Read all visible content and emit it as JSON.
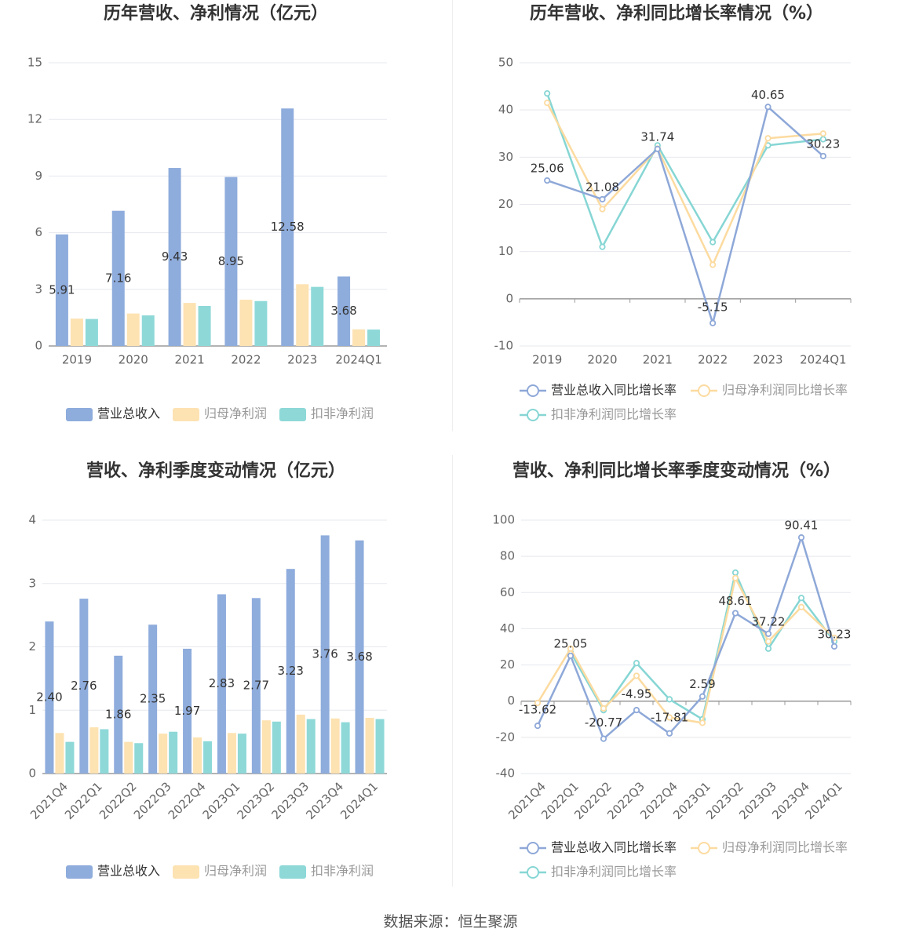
{
  "colors": {
    "revenue": "#8eacdc",
    "parent_profit": "#fde2b2",
    "deducted_profit": "#8ed8d8",
    "revenue_line": "#8ea8d8",
    "parent_line": "#fcdba0",
    "deducted_line": "#86d6d4"
  },
  "source": "数据来源：恒生聚源",
  "chart_data": [
    {
      "id": "annual-bars",
      "type": "bar",
      "title": "历年营收、净利情况（亿元）",
      "categories": [
        "2019",
        "2020",
        "2021",
        "2022",
        "2023",
        "2024Q1"
      ],
      "series": [
        {
          "name": "营业总收入",
          "values": [
            5.91,
            7.16,
            9.43,
            8.95,
            12.58,
            3.68
          ],
          "labels": [
            "5.91",
            "7.16",
            "9.43",
            "8.95",
            "12.58",
            "3.68"
          ]
        },
        {
          "name": "归母净利润",
          "values": [
            1.45,
            1.72,
            2.28,
            2.45,
            3.27,
            0.88
          ]
        },
        {
          "name": "扣非净利润",
          "values": [
            1.43,
            1.62,
            2.12,
            2.38,
            3.13,
            0.87
          ]
        }
      ],
      "yticks": [
        "0",
        "3",
        "6",
        "9",
        "12",
        "15"
      ],
      "ylim": [
        0,
        15
      ],
      "grid": true,
      "legend": "bottom"
    },
    {
      "id": "annual-growth",
      "type": "line",
      "title": "历年营收、净利同比增长率情况（%）",
      "categories": [
        "2019",
        "2020",
        "2021",
        "2022",
        "2023",
        "2024Q1"
      ],
      "series": [
        {
          "name": "营业总收入同比增长率",
          "values": [
            25.06,
            21.08,
            31.74,
            -5.15,
            40.65,
            30.23
          ],
          "labels": [
            "25.06",
            "21.08",
            "31.74",
            "-5.15",
            "40.65",
            "30.23"
          ]
        },
        {
          "name": "归母净利润同比增长率",
          "values": [
            41.5,
            19.0,
            31.8,
            7.2,
            34.0,
            35.0
          ]
        },
        {
          "name": "扣非净利润同比增长率",
          "values": [
            43.5,
            11.0,
            32.5,
            12.0,
            32.5,
            33.8
          ]
        }
      ],
      "yticks": [
        "-10",
        "0",
        "10",
        "20",
        "30",
        "40",
        "50"
      ],
      "ylim": [
        -10,
        50
      ],
      "grid": true,
      "legend": "bottom"
    },
    {
      "id": "quarterly-bars",
      "type": "bar",
      "title": "营收、净利季度变动情况（亿元）",
      "categories": [
        "2021Q4",
        "2022Q1",
        "2022Q2",
        "2022Q3",
        "2022Q4",
        "2023Q1",
        "2023Q2",
        "2023Q3",
        "2023Q4",
        "2024Q1"
      ],
      "series": [
        {
          "name": "营业总收入",
          "values": [
            2.4,
            2.76,
            1.86,
            2.35,
            1.97,
            2.83,
            2.77,
            3.23,
            3.76,
            3.68
          ],
          "labels": [
            "2.40",
            "2.76",
            "1.86",
            "2.35",
            "1.97",
            "2.83",
            "2.77",
            "3.23",
            "3.76",
            "3.68"
          ]
        },
        {
          "name": "归母净利润",
          "values": [
            0.64,
            0.73,
            0.5,
            0.63,
            0.57,
            0.64,
            0.84,
            0.93,
            0.87,
            0.88
          ]
        },
        {
          "name": "扣非净利润",
          "values": [
            0.5,
            0.7,
            0.48,
            0.66,
            0.51,
            0.63,
            0.82,
            0.86,
            0.81,
            0.86
          ]
        }
      ],
      "yticks": [
        "0",
        "1",
        "2",
        "3",
        "4"
      ],
      "ylim": [
        0,
        4
      ],
      "grid": true,
      "legend": "bottom"
    },
    {
      "id": "quarterly-growth",
      "type": "line",
      "title": "营收、净利同比增长率季度变动情况（%）",
      "categories": [
        "2021Q4",
        "2022Q1",
        "2022Q2",
        "2022Q3",
        "2022Q4",
        "2023Q1",
        "2023Q2",
        "2023Q3",
        "2023Q4",
        "2024Q1"
      ],
      "series": [
        {
          "name": "营业总收入同比增长率",
          "values": [
            -13.62,
            25.05,
            -20.77,
            -4.95,
            -17.81,
            2.59,
            48.61,
            37.22,
            90.41,
            30.23
          ],
          "labels": [
            "-13.62",
            "25.05",
            "-20.77",
            "-4.95",
            "-17.81",
            "2.59",
            "48.61",
            "37.22",
            "90.41",
            "30.23"
          ]
        },
        {
          "name": "归母净利润同比增长率",
          "values": [
            -1.0,
            29.0,
            -4.0,
            14.0,
            -9.0,
            -12.0,
            68.0,
            33.0,
            52.0,
            35.0
          ]
        },
        {
          "name": "扣非净利润同比增长率",
          "values": [
            null,
            27.0,
            -5.0,
            21.0,
            1.0,
            -10.0,
            71.0,
            29.0,
            57.0,
            33.0
          ]
        }
      ],
      "yticks": [
        "-40",
        "-20",
        "0",
        "20",
        "40",
        "60",
        "80",
        "100"
      ],
      "ylim": [
        -40,
        100
      ],
      "grid": true,
      "legend": "bottom"
    }
  ]
}
